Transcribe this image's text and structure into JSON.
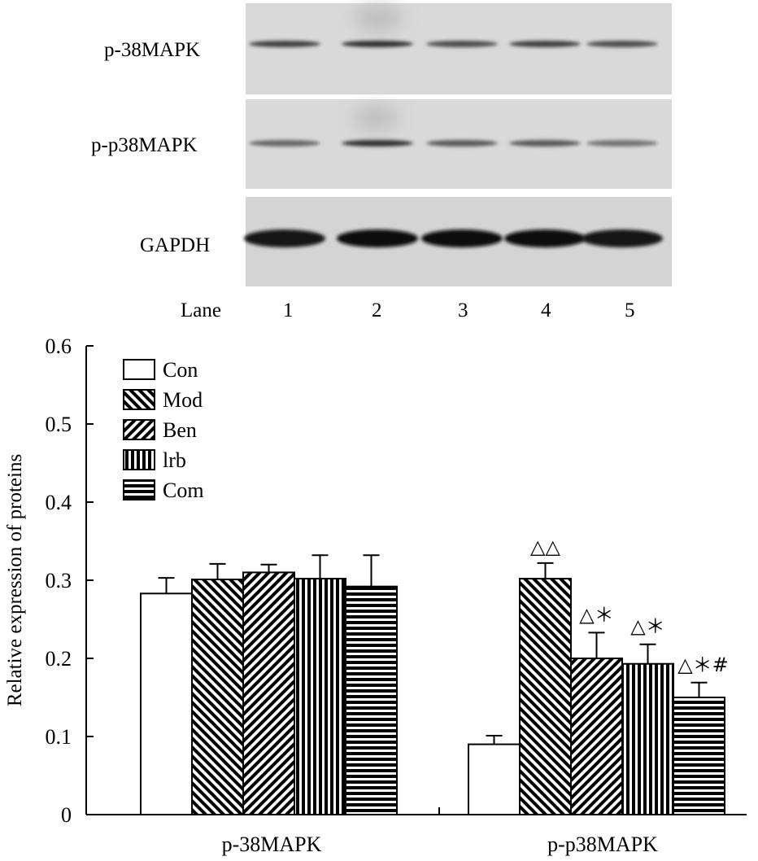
{
  "blot": {
    "rows": [
      {
        "label": "p-38MAPK",
        "band_intensity": [
          0.75,
          0.8,
          0.7,
          0.75,
          0.7
        ],
        "band_width": "thin"
      },
      {
        "label": "p-p38MAPK",
        "band_intensity": [
          0.6,
          0.8,
          0.65,
          0.65,
          0.55
        ],
        "band_width": "thin"
      },
      {
        "label": "GAPDH",
        "band_intensity": [
          0.9,
          0.95,
          0.95,
          0.95,
          0.9
        ],
        "band_width": "thick"
      }
    ],
    "lane_title": "Lane",
    "lanes": [
      "1",
      "2",
      "3",
      "4",
      "5"
    ]
  },
  "chart_data": {
    "type": "bar",
    "ylabel": "Relative expression of proteins",
    "ylim": [
      0,
      0.6
    ],
    "yticks": [
      "0",
      "0.1",
      "0.2",
      "0.3",
      "0.4",
      "0.5",
      "0.6"
    ],
    "categories": [
      "p-38MAPK",
      "p-p38MAPK"
    ],
    "legend_position": "top-left",
    "series": [
      {
        "name": "Con",
        "pattern": "empty",
        "values": [
          0.283,
          0.09
        ],
        "errors": [
          0.02,
          0.011
        ]
      },
      {
        "name": "Mod",
        "pattern": "backslash",
        "values": [
          0.301,
          0.302
        ],
        "errors": [
          0.02,
          0.02
        ]
      },
      {
        "name": "Ben",
        "pattern": "slash",
        "values": [
          0.31,
          0.2
        ],
        "errors": [
          0.01,
          0.033
        ]
      },
      {
        "name": "lrb",
        "pattern": "vertical",
        "values": [
          0.302,
          0.193
        ],
        "errors": [
          0.03,
          0.025
        ]
      },
      {
        "name": "Com",
        "pattern": "horizontal",
        "values": [
          0.292,
          0.15
        ],
        "errors": [
          0.04,
          0.019
        ]
      }
    ],
    "annotations": [
      {
        "category": 1,
        "series": 1,
        "text": "△△"
      },
      {
        "category": 1,
        "series": 2,
        "text": "△＊"
      },
      {
        "category": 1,
        "series": 3,
        "text": "△＊"
      },
      {
        "category": 1,
        "series": 4,
        "text": "△＊#"
      }
    ]
  }
}
